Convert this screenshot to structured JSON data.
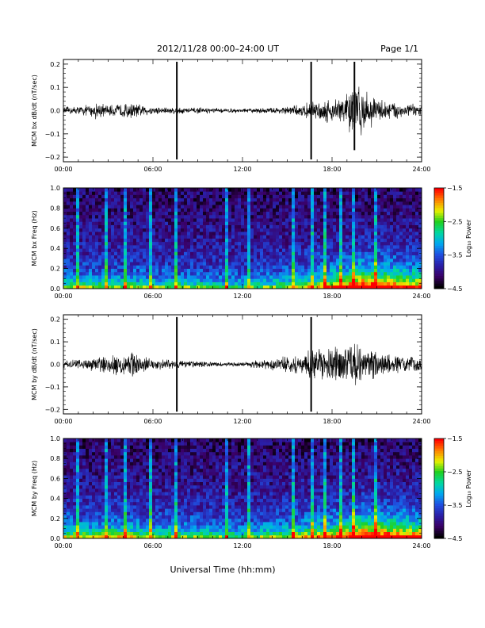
{
  "header": {
    "title": "2012/11/28  00:00–24:00 UT",
    "page_label": "Page 1/1"
  },
  "xlabel": "Universal Time (hh:mm)",
  "colors": {
    "trace": "#000000",
    "background": "#ffffff",
    "colormap": [
      "#000000",
      "#3a0066",
      "#2a1fa8",
      "#1f4fe0",
      "#00a8f0",
      "#00d8a0",
      "#20d020",
      "#e8f000",
      "#ff8000",
      "#ff0000"
    ]
  },
  "chart_data": [
    {
      "type": "line",
      "id": "panel1",
      "ylabel": "MCM bx dB/dt (nT/sec)",
      "ylim": [
        -0.22,
        0.22
      ],
      "yticks": [
        -0.2,
        -0.1,
        0.0,
        0.1,
        0.2
      ],
      "ytick_labels": [
        "−0.2",
        "−0.1",
        "0.0",
        "0.1",
        "0.2"
      ],
      "xlim": [
        0,
        24
      ],
      "xticks": [
        0,
        6,
        12,
        18,
        24
      ],
      "xtick_labels": [
        "00:00",
        "06:00",
        "12:00",
        "18:00",
        "24:00"
      ],
      "envelope": {
        "hours": [
          0,
          1,
          2,
          2.3,
          2.6,
          3,
          4,
          4.5,
          5,
          6,
          7,
          8,
          9,
          10,
          11,
          12,
          13,
          14,
          15,
          16,
          16.5,
          17,
          17.5,
          18,
          18.5,
          19,
          19.5,
          20,
          20.5,
          21,
          22,
          23,
          24
        ],
        "amplitude": [
          0.018,
          0.022,
          0.03,
          0.05,
          0.035,
          0.025,
          0.035,
          0.04,
          0.03,
          0.02,
          0.018,
          0.016,
          0.014,
          0.012,
          0.01,
          0.01,
          0.012,
          0.015,
          0.02,
          0.03,
          0.04,
          0.05,
          0.055,
          0.06,
          0.07,
          0.09,
          0.15,
          0.12,
          0.08,
          0.06,
          0.045,
          0.035,
          0.03
        ]
      },
      "spikes": [
        {
          "hour": 7.6,
          "low": -0.21,
          "high": 0.21
        },
        {
          "hour": 16.6,
          "low": -0.21,
          "high": 0.21
        },
        {
          "hour": 19.5,
          "low": -0.17,
          "high": 0.21
        }
      ]
    },
    {
      "type": "heatmap",
      "id": "panel2",
      "ylabel": "MCM bx Freq (Hz)",
      "ylim": [
        0,
        1.0
      ],
      "yticks": [
        0.0,
        0.2,
        0.4,
        0.6,
        0.8,
        1.0
      ],
      "ytick_labels": [
        "0.0",
        "0.2",
        "0.4",
        "0.6",
        "0.8",
        "1.0"
      ],
      "xlim": [
        0,
        24
      ],
      "xticks": [
        0,
        6,
        12,
        18,
        24
      ],
      "xtick_labels": [
        "00:00",
        "06:00",
        "12:00",
        "18:00",
        "24:00"
      ],
      "colorbar": {
        "label": "Log₁₀ Power",
        "range": [
          -4.5,
          -1.5
        ],
        "ticks": [
          -1.5,
          -2.5,
          -3.5,
          -4.5
        ],
        "tick_labels": [
          "−1.5",
          "−2.5",
          "−3.5",
          "−4.5"
        ]
      },
      "activity": {
        "hours": [
          0,
          2,
          4,
          6,
          8,
          10,
          12,
          14,
          16,
          17,
          18,
          19,
          20,
          21,
          22,
          24
        ],
        "level": [
          0.25,
          0.3,
          0.3,
          0.25,
          0.25,
          0.2,
          0.18,
          0.25,
          0.35,
          0.45,
          0.55,
          0.65,
          0.85,
          0.8,
          0.7,
          0.6
        ]
      },
      "streaks": [
        1.0,
        2.9,
        4.2,
        5.8,
        7.6,
        10.9,
        12.4,
        15.5,
        16.6,
        17.6,
        18.6,
        19.5,
        21.0
      ]
    },
    {
      "type": "line",
      "id": "panel3",
      "ylabel": "MCM by dB/dt (nT/sec)",
      "ylim": [
        -0.22,
        0.22
      ],
      "yticks": [
        -0.2,
        -0.1,
        0.0,
        0.1,
        0.2
      ],
      "ytick_labels": [
        "−0.2",
        "−0.1",
        "0.0",
        "0.1",
        "0.2"
      ],
      "xlim": [
        0,
        24
      ],
      "xticks": [
        0,
        6,
        12,
        18,
        24
      ],
      "xtick_labels": [
        "00:00",
        "06:00",
        "12:00",
        "18:00",
        "24:00"
      ],
      "envelope": {
        "hours": [
          0,
          1,
          2,
          3,
          3.5,
          4,
          4.5,
          5,
          6,
          7,
          8,
          9,
          10,
          11,
          12,
          13,
          14,
          15,
          16,
          16.5,
          17,
          17.5,
          18,
          18.5,
          19,
          19.5,
          20,
          20.5,
          21,
          22,
          23,
          24
        ],
        "amplitude": [
          0.022,
          0.025,
          0.035,
          0.04,
          0.06,
          0.055,
          0.07,
          0.045,
          0.03,
          0.025,
          0.02,
          0.015,
          0.012,
          0.01,
          0.012,
          0.02,
          0.03,
          0.04,
          0.055,
          0.07,
          0.08,
          0.085,
          0.09,
          0.09,
          0.1,
          0.11,
          0.1,
          0.09,
          0.07,
          0.05,
          0.04,
          0.035
        ]
      },
      "spikes": [
        {
          "hour": 7.6,
          "low": -0.21,
          "high": 0.21
        },
        {
          "hour": 16.6,
          "low": -0.21,
          "high": 0.21
        }
      ]
    },
    {
      "type": "heatmap",
      "id": "panel4",
      "ylabel": "MCM by Freq (Hz)",
      "ylim": [
        0,
        1.0
      ],
      "yticks": [
        0.0,
        0.2,
        0.4,
        0.6,
        0.8,
        1.0
      ],
      "ytick_labels": [
        "0.0",
        "0.2",
        "0.4",
        "0.6",
        "0.8",
        "1.0"
      ],
      "xlim": [
        0,
        24
      ],
      "xticks": [
        0,
        6,
        12,
        18,
        24
      ],
      "xtick_labels": [
        "00:00",
        "06:00",
        "12:00",
        "18:00",
        "24:00"
      ],
      "colorbar": {
        "label": "Log₁₀ Power",
        "range": [
          -4.5,
          -1.5
        ],
        "ticks": [
          -1.5,
          -2.5,
          -3.5,
          -4.5
        ],
        "tick_labels": [
          "−1.5",
          "−2.5",
          "−3.5",
          "−4.5"
        ]
      },
      "activity": {
        "hours": [
          0,
          2,
          4,
          6,
          8,
          10,
          12,
          14,
          16,
          17,
          18,
          19,
          20,
          21,
          22,
          24
        ],
        "level": [
          0.35,
          0.35,
          0.4,
          0.3,
          0.3,
          0.25,
          0.22,
          0.3,
          0.4,
          0.5,
          0.55,
          0.65,
          0.85,
          0.8,
          0.75,
          0.65
        ]
      },
      "streaks": [
        1.0,
        2.9,
        4.2,
        5.8,
        7.6,
        10.9,
        12.4,
        15.5,
        16.6,
        17.6,
        18.6,
        19.5,
        21.0
      ]
    }
  ]
}
